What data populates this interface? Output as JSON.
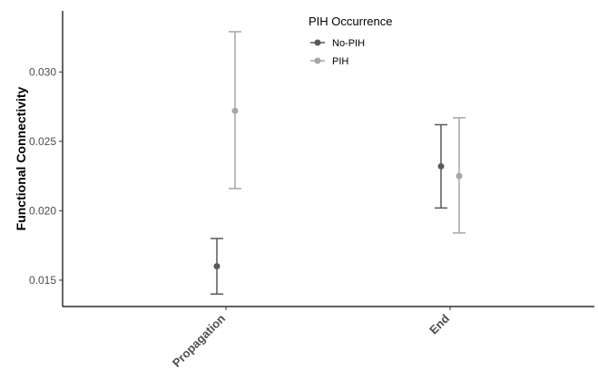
{
  "chart_data": {
    "type": "scatter",
    "ylabel": "Functional Connectivity",
    "xlabel": "",
    "categories": [
      "Propagation",
      "End"
    ],
    "yticks": [
      "0.015",
      "0.020",
      "0.025",
      "0.030"
    ],
    "ylim": [
      0.0131,
      0.0344
    ],
    "legend": {
      "title": "PIH Occurrence",
      "position": "top-center"
    },
    "series": [
      {
        "name": "No-PIH",
        "color": "#595959",
        "values": [
          0.016,
          0.0232
        ],
        "lower": [
          0.014,
          0.0202
        ],
        "upper": [
          0.018,
          0.0262
        ]
      },
      {
        "name": "PIH",
        "color": "#a6a6a6",
        "values": [
          0.0272,
          0.0225
        ],
        "lower": [
          0.0216,
          0.0184
        ],
        "upper": [
          0.0329,
          0.0267
        ]
      }
    ],
    "grid": false
  }
}
